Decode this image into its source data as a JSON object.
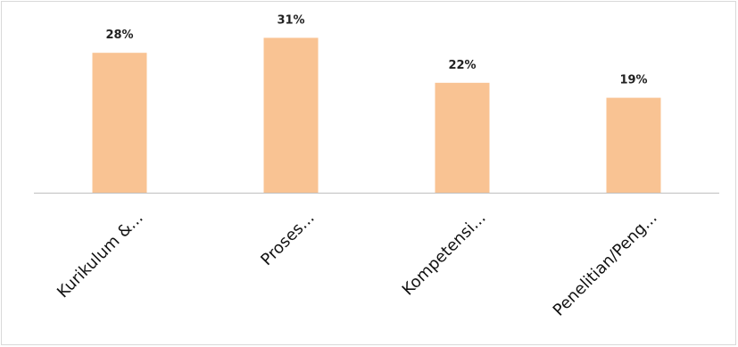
{
  "chart_data": {
    "type": "bar",
    "categories": [
      "Kurikulum &...",
      "Proses...",
      "Kompetensi...",
      "Penelitian/Peng..."
    ],
    "values": [
      28,
      31,
      22,
      19
    ],
    "value_suffix": "%",
    "title": "",
    "xlabel": "",
    "ylabel": "",
    "ylim": [
      0,
      35
    ],
    "grid": false,
    "legend": "none",
    "bar_color": "#F9C393",
    "axis_color": "#BFBFBF"
  }
}
